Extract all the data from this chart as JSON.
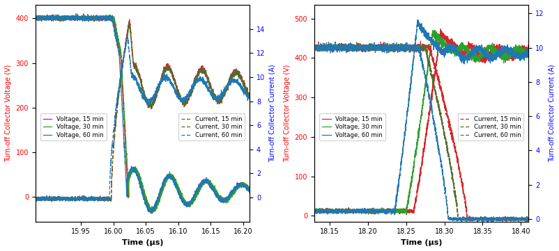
{
  "subplot1": {
    "xlabel": "Time (μs)",
    "ylabel_left": "Turn-off Collector Voltage (V)",
    "ylabel_right": "Turn-off Collector Current (A)",
    "xlim": [
      15.88,
      16.21
    ],
    "ylim_left": [
      -55,
      430
    ],
    "ylim_right": [
      -2,
      16
    ],
    "xticks": [
      15.95,
      16.0,
      16.05,
      16.1,
      16.15,
      16.2
    ],
    "yticks_left": [
      0,
      100,
      200,
      300,
      400
    ],
    "yticks_right": [
      0,
      2,
      4,
      6,
      8,
      10,
      12,
      14
    ],
    "col15": "#d62728",
    "col30": "#2ca02c",
    "col60": "#1f77b4",
    "ccol15": "#d62728",
    "ccol30": "#556b2f",
    "ccol60": "#1f77b4"
  },
  "subplot2": {
    "xlabel": "Time (μs)",
    "ylabel_left": "Turn-off Collector Voltage (V)",
    "ylabel_right": "Turn-off Collector Current (A)",
    "xlim": [
      18.13,
      18.41
    ],
    "ylim_left": [
      -15,
      535
    ],
    "ylim_right": [
      -0.15,
      12.5
    ],
    "xticks": [
      18.15,
      18.2,
      18.25,
      18.3,
      18.35,
      18.4
    ],
    "yticks_left": [
      0,
      100,
      200,
      300,
      400,
      500
    ],
    "yticks_right": [
      0,
      2,
      4,
      6,
      8,
      10,
      12
    ],
    "col15": "#d62728",
    "col30": "#2ca02c",
    "col60": "#1f77b4",
    "ccol15": "#d62728",
    "ccol30": "#556b2f",
    "ccol60": "#1f77b4"
  }
}
